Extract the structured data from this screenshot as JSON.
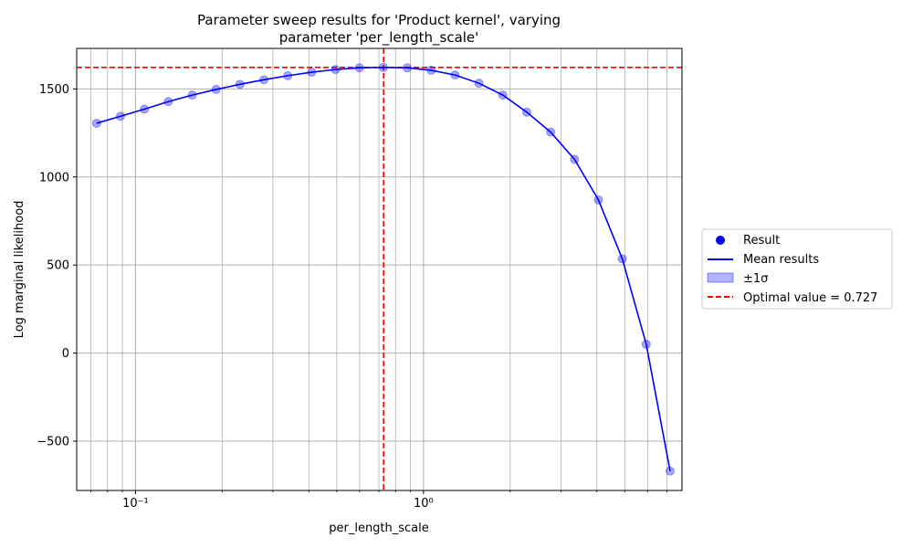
{
  "chart_data": {
    "type": "scatter",
    "title_line1": "Parameter sweep results for 'Product kernel', varying",
    "title_line2": "parameter 'per_length_scale'",
    "xlabel": "per_length_scale",
    "ylabel": "Log marginal likelihood",
    "xscale": "log",
    "xlim": [
      0.0625,
      7.9
    ],
    "ylim": [
      -780,
      1730
    ],
    "x_major_ticks": [
      0.1,
      1
    ],
    "x_major_tick_labels": [
      "10⁻¹",
      "10⁰"
    ],
    "y_ticks": [
      -500,
      0,
      500,
      1000,
      1500
    ],
    "y_tick_labels": [
      "−500",
      "0",
      "500",
      "1000",
      "1500"
    ],
    "grid": true,
    "legend_placement": "right, outside",
    "x": [
      0.0733,
      0.0887,
      0.1074,
      0.13,
      0.1574,
      0.1905,
      0.2306,
      0.2791,
      0.3378,
      0.4089,
      0.495,
      0.5993,
      0.7254,
      0.8781,
      1.063,
      1.287,
      1.558,
      1.886,
      2.283,
      2.763,
      3.345,
      4.049,
      4.902,
      5.935,
      7.183
    ],
    "series": [
      {
        "name": "Result",
        "kind": "points",
        "color": "#0000ff",
        "values": [
          1305,
          1345,
          1385,
          1428,
          1465,
          1497,
          1526,
          1552,
          1575,
          1595,
          1610,
          1620,
          1622,
          1620,
          1606,
          1579,
          1532,
          1465,
          1368,
          1255,
          1100,
          870,
          535,
          50,
          -670
        ]
      },
      {
        "name": "Mean results",
        "kind": "line",
        "color": "#0000ff",
        "values": [
          1305,
          1345,
          1385,
          1428,
          1465,
          1497,
          1526,
          1552,
          1575,
          1595,
          1610,
          1620,
          1622,
          1620,
          1606,
          1579,
          1532,
          1465,
          1368,
          1255,
          1100,
          870,
          535,
          50,
          -670
        ]
      },
      {
        "name": "±1σ",
        "kind": "band",
        "color": "#0000ff"
      },
      {
        "name": "Optimal value = 0.727",
        "kind": "refline",
        "color": "#ff0000",
        "x_value": 0.727,
        "y_value": 1622
      }
    ]
  }
}
